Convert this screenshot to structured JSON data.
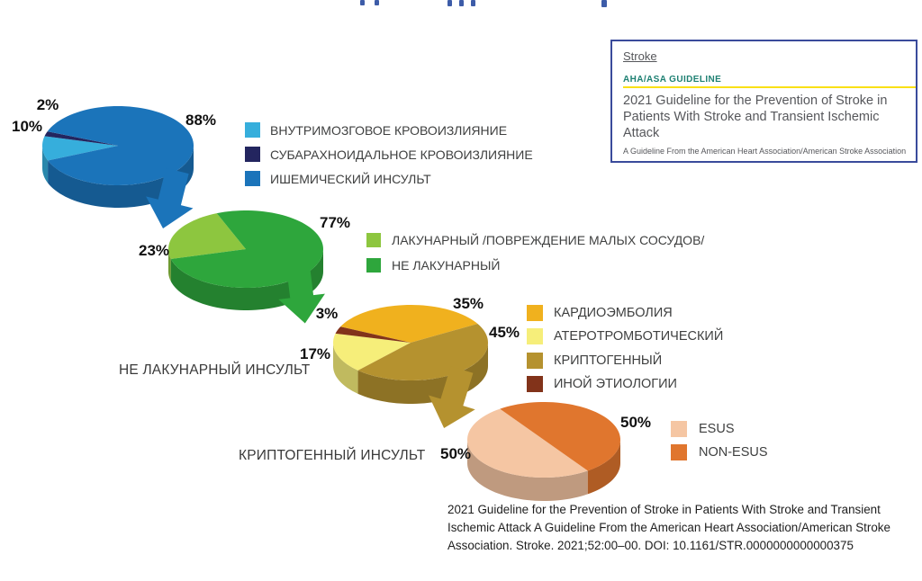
{
  "guideline_box": {
    "journal": "Stroke",
    "kicker": "AHA/ASA GUIDELINE",
    "title": "2021 Guideline for the Prevention of Stroke in Patients With Stroke and Transient Ischemic Attack",
    "subtitle": "A Guideline From the American Heart Association/American Stroke Association"
  },
  "annotations": {
    "non_lacunar_stroke": "НЕ ЛАКУНАРНЫЙ ИНСУЛЬТ",
    "cryptogenic_stroke": "КРИПТОГЕННЫЙ ИНСУЛЬТ"
  },
  "citation": "2021 Guideline for the Prevention of Stroke in Patients With Stroke and Transient Ischemic Attack A Guideline From the American Heart Association/American Stroke Association. Stroke. 2021;52:00–00. DOI: 10.1161/STR.0000000000000375",
  "chart_data": [
    {
      "type": "pie",
      "name": "stroke-types",
      "unit": "%",
      "slices": [
        {
          "label": "ВНУТРИМОЗГОВОЕ КРОВОИЗЛИЯНИЕ",
          "value": 10,
          "color": "#36aedc"
        },
        {
          "label": "СУБАРАХНОИДАЛЬНОЕ КРОВОИЗЛИЯНИЕ",
          "value": 2,
          "color": "#23255f"
        },
        {
          "label": "ИШЕМИЧЕСКИЙ ИНСУЛЬТ",
          "value": 88,
          "color": "#1b74ba"
        }
      ]
    },
    {
      "type": "pie",
      "name": "ischemic-stroke-subtypes",
      "unit": "%",
      "slices": [
        {
          "label": "ЛАКУНАРНЫЙ /ПОВРЕЖДЕНИЕ МАЛЫХ СОСУДОВ/",
          "value": 23,
          "color": "#8dc63f"
        },
        {
          "label": "НЕ ЛАКУНАРНЫЙ",
          "value": 77,
          "color": "#2ea63c"
        }
      ]
    },
    {
      "type": "pie",
      "name": "non-lacunar-stroke-subtypes",
      "unit": "%",
      "slices": [
        {
          "label": "КАРДИОЭМБОЛИЯ",
          "value": 35,
          "color": "#f0b11e"
        },
        {
          "label": "АТЕРОТРОМБОТИЧЕСКИЙ",
          "value": 17,
          "color": "#f6ee7a"
        },
        {
          "label": "КРИПТОГЕННЫЙ",
          "value": 45,
          "color": "#b5922f"
        },
        {
          "label": "ИНОЙ ЭТИОЛОГИИ",
          "value": 3,
          "color": "#82331a"
        }
      ]
    },
    {
      "type": "pie",
      "name": "cryptogenic-stroke-subtypes",
      "unit": "%",
      "slices": [
        {
          "label": "ESUS",
          "value": 50,
          "color": "#f5c6a3"
        },
        {
          "label": "NON-ESUS",
          "value": 50,
          "color": "#e0762e"
        }
      ]
    }
  ]
}
